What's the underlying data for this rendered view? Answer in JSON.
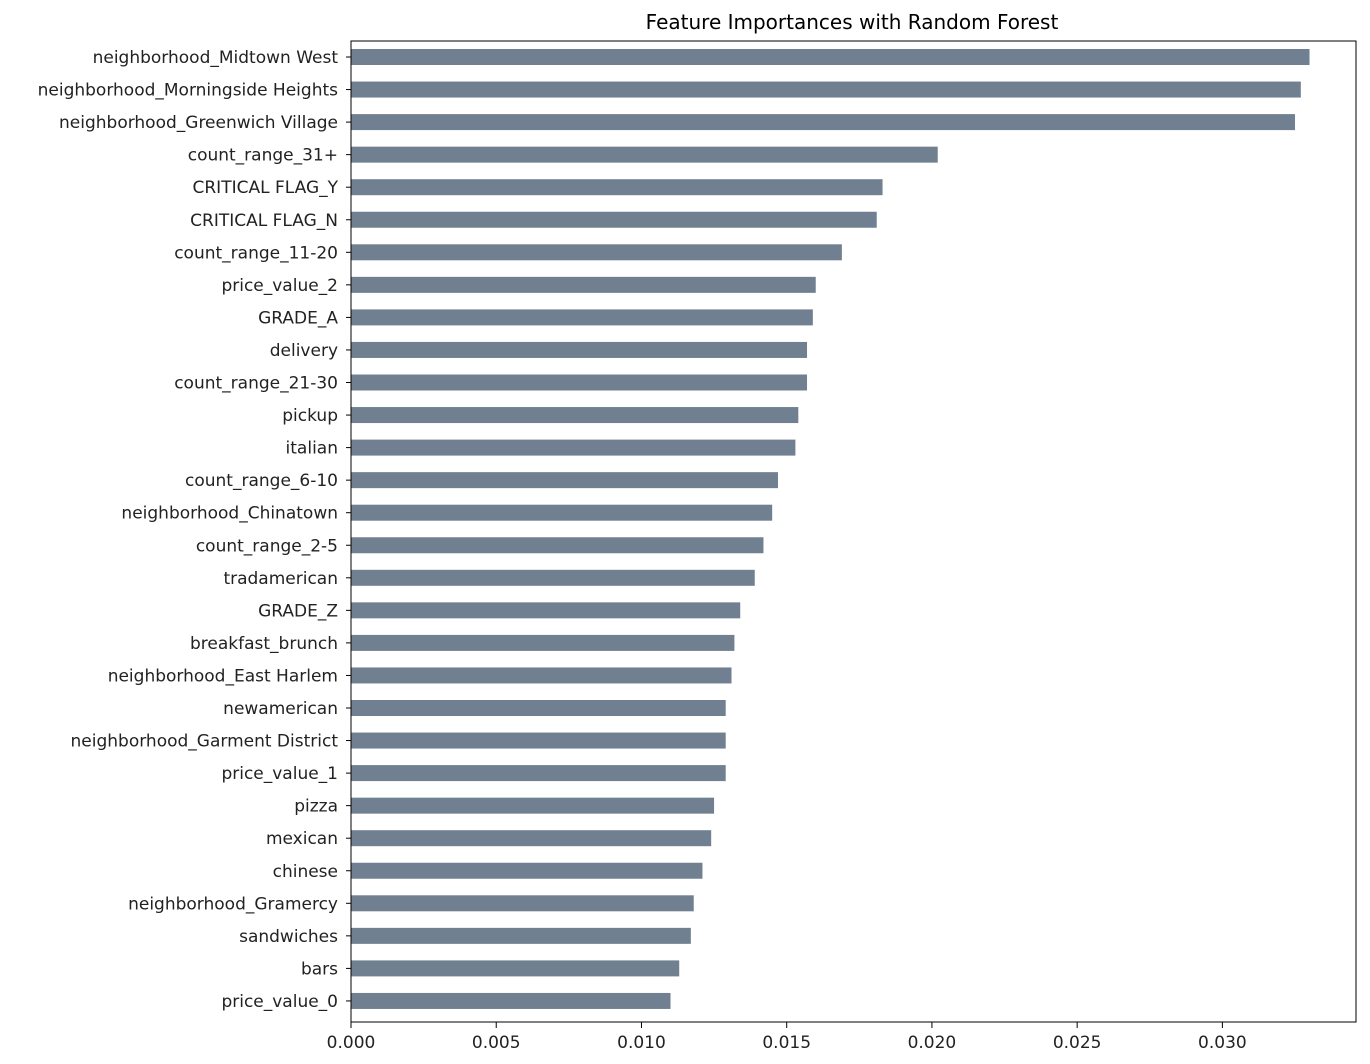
{
  "chart_data": {
    "type": "bar",
    "orientation": "horizontal",
    "title": "Feature Importances with Random Forest",
    "xlabel": "",
    "ylabel": "",
    "xlim": [
      0,
      0.0346
    ],
    "grid": false,
    "bar_color": "#708090",
    "x_ticks": [
      "0.000",
      "0.005",
      "0.010",
      "0.015",
      "0.020",
      "0.025",
      "0.030"
    ],
    "x_tick_values": [
      0,
      0.005,
      0.01,
      0.015,
      0.02,
      0.025,
      0.03
    ],
    "categories": [
      "neighborhood_Midtown West",
      "neighborhood_Morningside Heights",
      "neighborhood_Greenwich Village",
      "count_range_31+",
      "CRITICAL FLAG_Y",
      "CRITICAL FLAG_N",
      "count_range_11-20",
      "price_value_2",
      "GRADE_A",
      "delivery",
      "count_range_21-30",
      "pickup",
      "italian",
      "count_range_6-10",
      "neighborhood_Chinatown",
      "count_range_2-5",
      "tradamerican",
      "GRADE_Z",
      "breakfast_brunch",
      "neighborhood_East Harlem",
      "newamerican",
      "neighborhood_Garment District",
      "price_value_1",
      "pizza",
      "mexican",
      "chinese",
      "neighborhood_Gramercy",
      "sandwiches",
      "bars",
      "price_value_0"
    ],
    "values": [
      0.033,
      0.0327,
      0.0325,
      0.0202,
      0.0183,
      0.0181,
      0.0169,
      0.016,
      0.0159,
      0.0157,
      0.0157,
      0.0154,
      0.0153,
      0.0147,
      0.0145,
      0.0142,
      0.0139,
      0.0134,
      0.0132,
      0.0131,
      0.0129,
      0.0129,
      0.0129,
      0.0125,
      0.0124,
      0.0121,
      0.0118,
      0.0117,
      0.0113,
      0.011
    ]
  }
}
